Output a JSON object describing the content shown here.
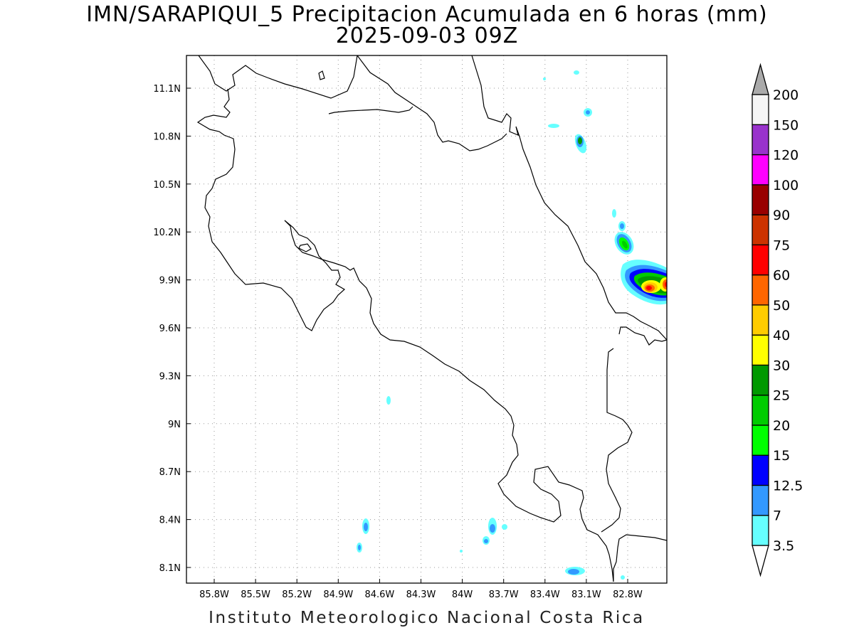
{
  "title": {
    "line1": "IMN/SARAPIQUI_5 Precipitacion Acumulada en 6 horas (mm)",
    "line2": "2025-09-03 09Z"
  },
  "footer": "Instituto Meteorologico Nacional Costa Rica",
  "axes": {
    "lon_ticks": [
      "85.8W",
      "85.5W",
      "85.2W",
      "84.9W",
      "84.6W",
      "84.3W",
      "84W",
      "83.7W",
      "83.4W",
      "83.1W",
      "82.8W"
    ],
    "lat_ticks": [
      "11.1N",
      "10.8N",
      "10.5N",
      "10.2N",
      "9.9N",
      "9.6N",
      "9.3N",
      "9N",
      "8.7N",
      "8.4N",
      "8.1N"
    ],
    "grid": "dotted"
  },
  "colorbar": {
    "labels": [
      "3.5",
      "7",
      "12.5",
      "15",
      "20",
      "25",
      "30",
      "40",
      "50",
      "60",
      "75",
      "90",
      "100",
      "120",
      "150",
      "200"
    ],
    "colors": [
      "#66ffff",
      "#3399ff",
      "#0000ff",
      "#00ff00",
      "#00cc00",
      "#009900",
      "#ffff00",
      "#ffcc00",
      "#ff6600",
      "#ff0000",
      "#cc3300",
      "#990000",
      "#ff00ff",
      "#9933cc",
      "#f5f5f5"
    ],
    "over_color": "#aaaaaa",
    "under_color": "#ffffff"
  }
}
